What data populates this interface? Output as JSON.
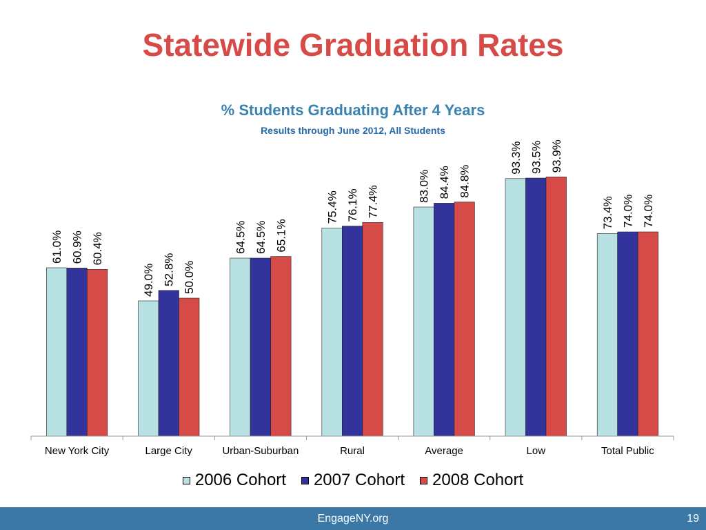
{
  "slide": {
    "title": "Statewide Graduation Rates",
    "footer": "EngageNY.org",
    "page_number": "19"
  },
  "colors": {
    "title": "#d64b48",
    "chart_title": "#3a82b0",
    "footer_bg": "#3b78a5",
    "series": [
      "#b7e1e3",
      "#32339b",
      "#d64b48"
    ]
  },
  "chart_data": {
    "type": "bar",
    "title": "% Students Graduating After 4 Years",
    "subtitle": "Results through June 2012, All Students",
    "xlabel": "",
    "ylabel": "",
    "ylim": [
      0,
      100
    ],
    "grid": false,
    "legend_position": "bottom",
    "categories": [
      "New York City",
      "Large City",
      "Urban-Suburban",
      "Rural",
      "Average",
      "Low",
      "Total Public"
    ],
    "series": [
      {
        "name": "2006 Cohort",
        "values": [
          61.0,
          49.0,
          64.5,
          75.4,
          83.0,
          93.3,
          73.4
        ],
        "labels": [
          "61.0%",
          "49.0%",
          "64.5%",
          "75.4%",
          "83.0%",
          "93.3%",
          "73.4%"
        ]
      },
      {
        "name": "2007 Cohort",
        "values": [
          60.9,
          52.8,
          64.5,
          76.1,
          84.4,
          93.5,
          74.0
        ],
        "labels": [
          "60.9%",
          "52.8%",
          "64.5%",
          "76.1%",
          "84.4%",
          "93.5%",
          "74.0%"
        ]
      },
      {
        "name": "2008 Cohort",
        "values": [
          60.4,
          50.0,
          65.1,
          77.4,
          84.8,
          93.9,
          74.0
        ],
        "labels": [
          "60.4%",
          "50.0%",
          "65.1%",
          "77.4%",
          "84.8%",
          "93.9%",
          "74.0%"
        ]
      }
    ]
  }
}
